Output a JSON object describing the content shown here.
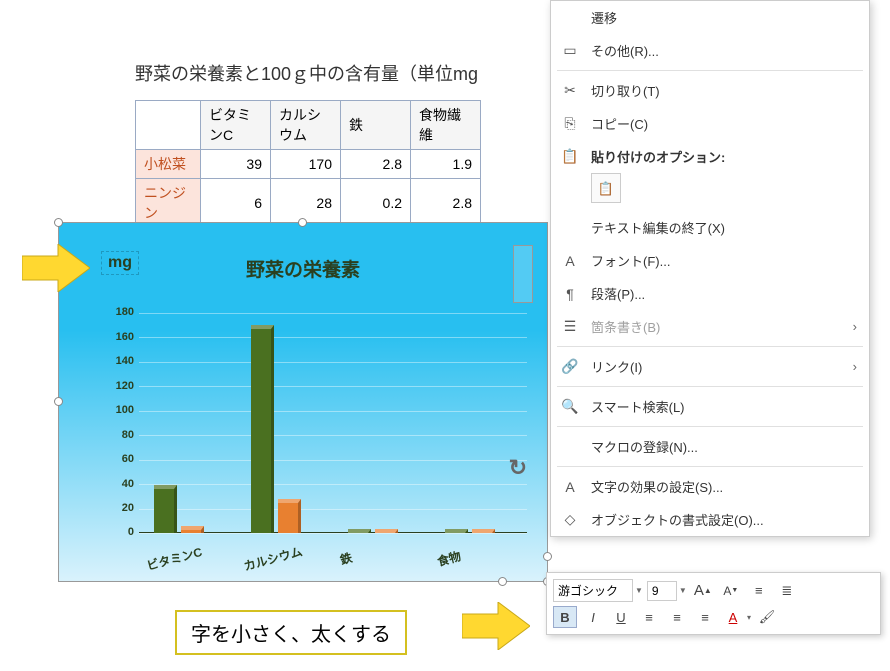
{
  "title": "野菜の栄養素と100ｇ中の含有量（単位mg",
  "table": {
    "headers": [
      "",
      "ビタミンC",
      "カルシウム",
      "鉄",
      "食物繊維"
    ],
    "rows": [
      {
        "label": "小松菜",
        "values": [
          "39",
          "170",
          "2.8",
          "1.9"
        ]
      },
      {
        "label": "ニンジン",
        "values": [
          "6",
          "28",
          "0.2",
          "2.8"
        ]
      }
    ]
  },
  "chart": {
    "title": "野菜の栄養素",
    "y_unit": "mg",
    "ylim": [
      0,
      180
    ],
    "ytick_step": 20,
    "categories": [
      "ビタミンC",
      "カルシウム",
      "鉄",
      "食物"
    ],
    "series": [
      {
        "name": "小松菜",
        "color": "#4a7020",
        "values": [
          39,
          170,
          2.8,
          1.9
        ]
      },
      {
        "name": "ニンジン",
        "color": "#e88030",
        "values": [
          6,
          28,
          0.2,
          2.8
        ]
      }
    ],
    "background_top": "#28bff0",
    "background_bottom": "#d9f2fc"
  },
  "caption": "字を小さく、太くする",
  "context_menu": {
    "items": [
      {
        "label": "遷移",
        "icon": ""
      },
      {
        "label": "その他(R)...",
        "icon": "page",
        "key": "R"
      },
      {
        "sep": true
      },
      {
        "label": "切り取り(T)",
        "icon": "cut",
        "key": "T"
      },
      {
        "label": "コピー(C)",
        "icon": "copy",
        "key": "C"
      },
      {
        "label": "貼り付けのオプション:",
        "icon": "paste",
        "bold": true
      },
      {
        "paste_row": true
      },
      {
        "label": "テキスト編集の終了(X)",
        "icon": "",
        "key": "X"
      },
      {
        "label": "フォント(F)...",
        "icon": "font",
        "key": "F"
      },
      {
        "label": "段落(P)...",
        "icon": "paragraph",
        "key": "P"
      },
      {
        "label": "箇条書き(B)",
        "icon": "bullets",
        "key": "B",
        "disabled": true,
        "submenu": true
      },
      {
        "sep": true
      },
      {
        "label": "リンク(I)",
        "icon": "link",
        "key": "I",
        "submenu": true
      },
      {
        "sep": true
      },
      {
        "label": "スマート検索(L)",
        "icon": "smart",
        "key": "L"
      },
      {
        "sep": true
      },
      {
        "label": "マクロの登録(N)...",
        "icon": "",
        "key": "N"
      },
      {
        "sep": true
      },
      {
        "label": "文字の効果の設定(S)...",
        "icon": "texteffect",
        "key": "S"
      },
      {
        "label": "オブジェクトの書式設定(O)...",
        "icon": "format",
        "key": "O"
      }
    ]
  },
  "mini_toolbar": {
    "font_name": "游ゴシック",
    "font_size": "9",
    "bold": "B",
    "italic": "I",
    "underline": "U"
  }
}
